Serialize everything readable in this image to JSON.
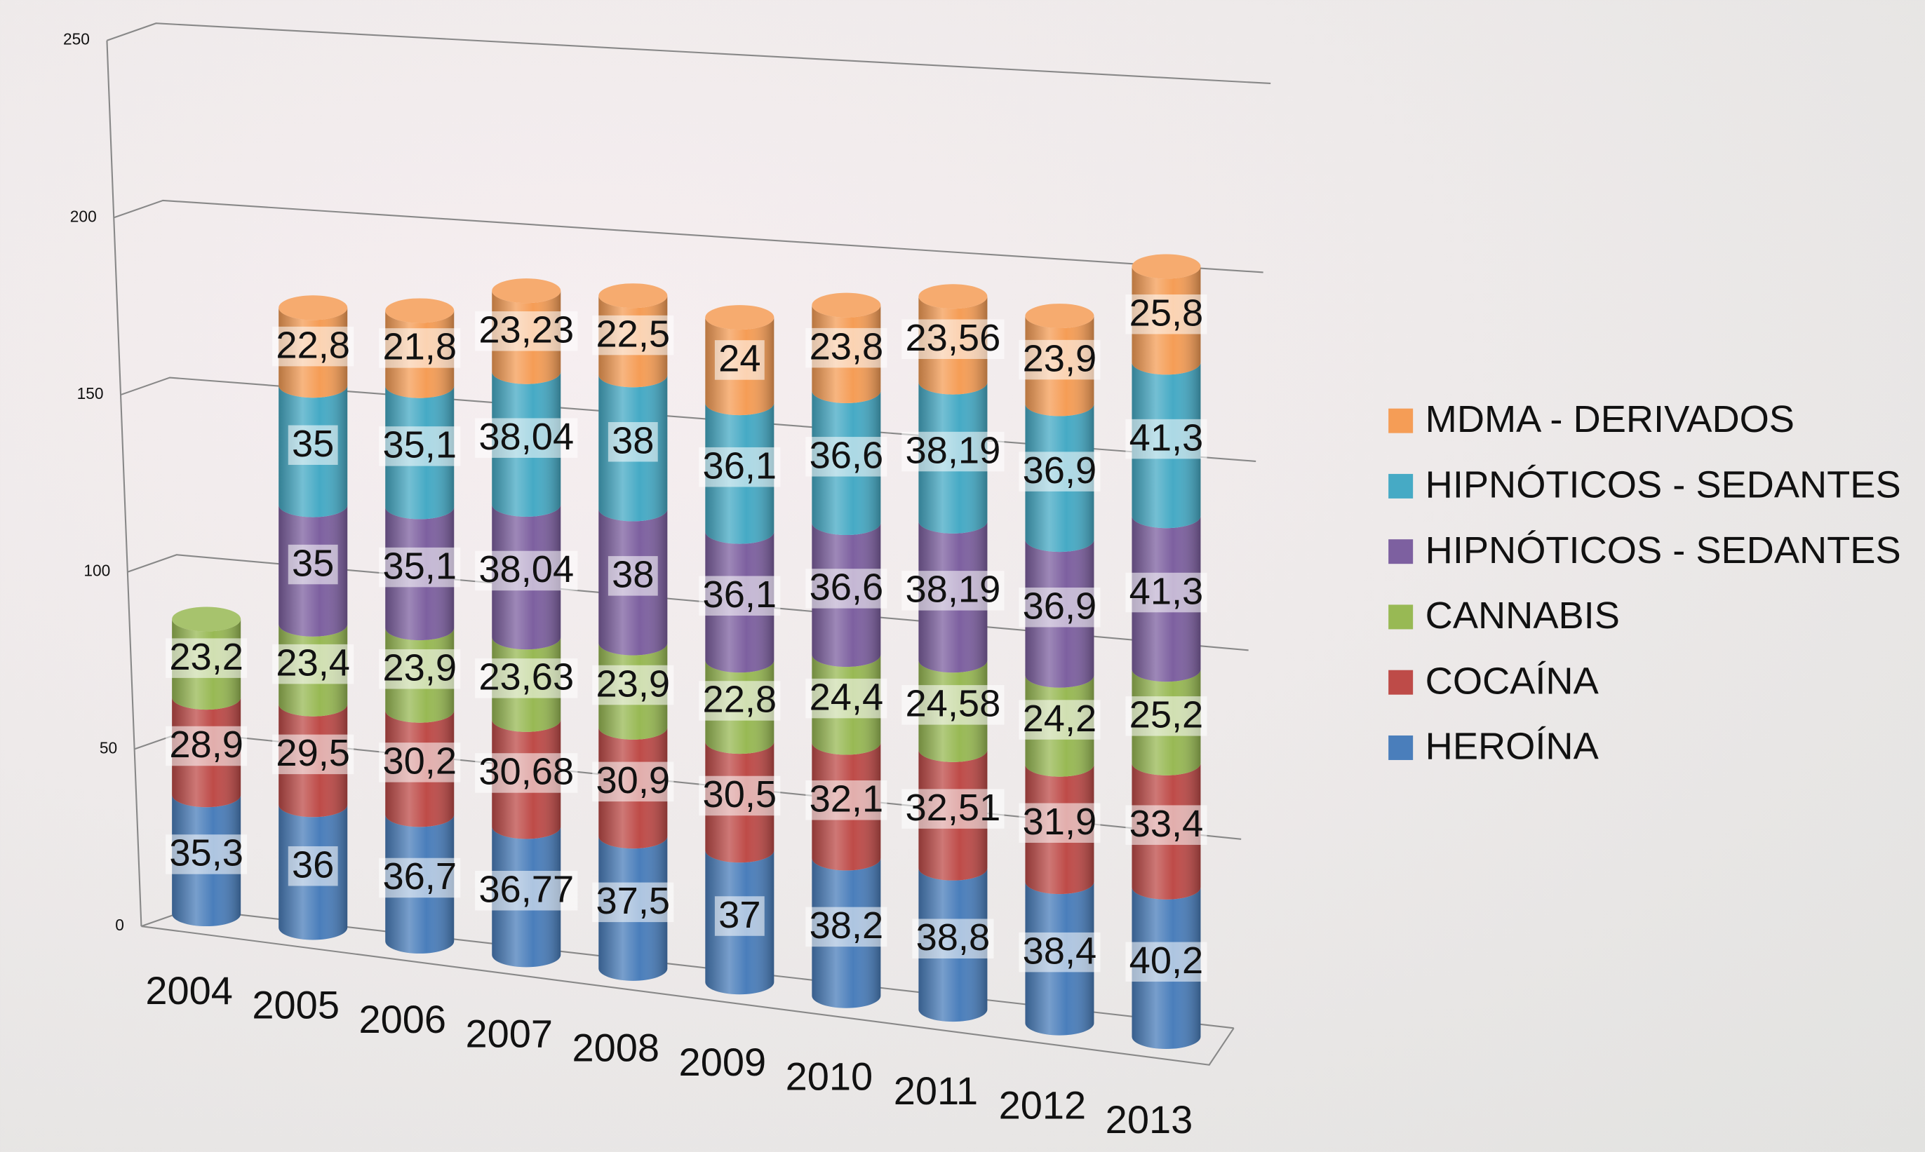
{
  "chart_data": {
    "type": "bar3d_stacked",
    "categories": [
      "2004",
      "2005",
      "2006",
      "2007",
      "2008",
      "2009",
      "2010",
      "2011",
      "2012",
      "2013"
    ],
    "ylim": [
      0,
      250
    ],
    "yticks": [
      0,
      50,
      100,
      150,
      200,
      250
    ],
    "grid": true,
    "legend": "right",
    "series": [
      {
        "name": "HEROÍNA",
        "color": "#4a7ebb",
        "values": [
          35.3,
          36,
          36.7,
          36.77,
          37.5,
          37,
          38.2,
          38.8,
          38.4,
          40.2
        ],
        "value_labels": [
          "35,3",
          "36",
          "36,7",
          "36,77",
          "37,5",
          "37",
          "38,2",
          "38,8",
          "38,4",
          "40,2"
        ]
      },
      {
        "name": "COCAÍNA",
        "color": "#be4b48",
        "values": [
          28.9,
          29.5,
          30.2,
          30.68,
          30.9,
          30.5,
          32.1,
          32.51,
          31.9,
          33.4
        ],
        "value_labels": [
          "28,9",
          "29,5",
          "30,2",
          "30,68",
          "30,9",
          "30,5",
          "32,1",
          "32,51",
          "31,9",
          "33,4"
        ]
      },
      {
        "name": "CANNABIS",
        "color": "#98b954",
        "values": [
          23.2,
          23.4,
          23.9,
          23.63,
          23.9,
          22.8,
          24.4,
          24.58,
          24.2,
          25.2
        ],
        "value_labels": [
          "23,2",
          "23,4",
          "23,9",
          "23,63",
          "23,9",
          "22,8",
          "24,4",
          "24,58",
          "24,2",
          "25,2"
        ]
      },
      {
        "name": "HIPNÓTICOS - SEDANTES",
        "color": "#7d60a0",
        "values": [
          null,
          35,
          35.1,
          38.04,
          38,
          36.1,
          36.6,
          38.19,
          36.9,
          41.3
        ],
        "value_labels": [
          null,
          "35",
          "35,1",
          "38,04",
          "38",
          "36,1",
          "36,6",
          "38,19",
          "36,9",
          "41,3"
        ]
      },
      {
        "name": "HIPNÓTICOS - SEDANTES",
        "color": "#46aac5",
        "values": [
          null,
          35,
          35.1,
          38.04,
          38,
          36.1,
          36.6,
          38.19,
          36.9,
          41.3
        ],
        "value_labels": [
          null,
          "35",
          "35,1",
          "38,04",
          "38",
          "36,1",
          "36,6",
          "38,19",
          "36,9",
          "41,3"
        ]
      },
      {
        "name": "MDMA - DERIVADOS",
        "color": "#f59d56",
        "values": [
          null,
          22.8,
          21.8,
          23.23,
          22.5,
          24,
          23.8,
          23.56,
          23.9,
          25.8
        ],
        "value_labels": [
          null,
          "22,8",
          "21,8",
          "23,23",
          "22,5",
          "24",
          "23,8",
          "23,56",
          "23,9",
          "25,8"
        ]
      }
    ]
  }
}
